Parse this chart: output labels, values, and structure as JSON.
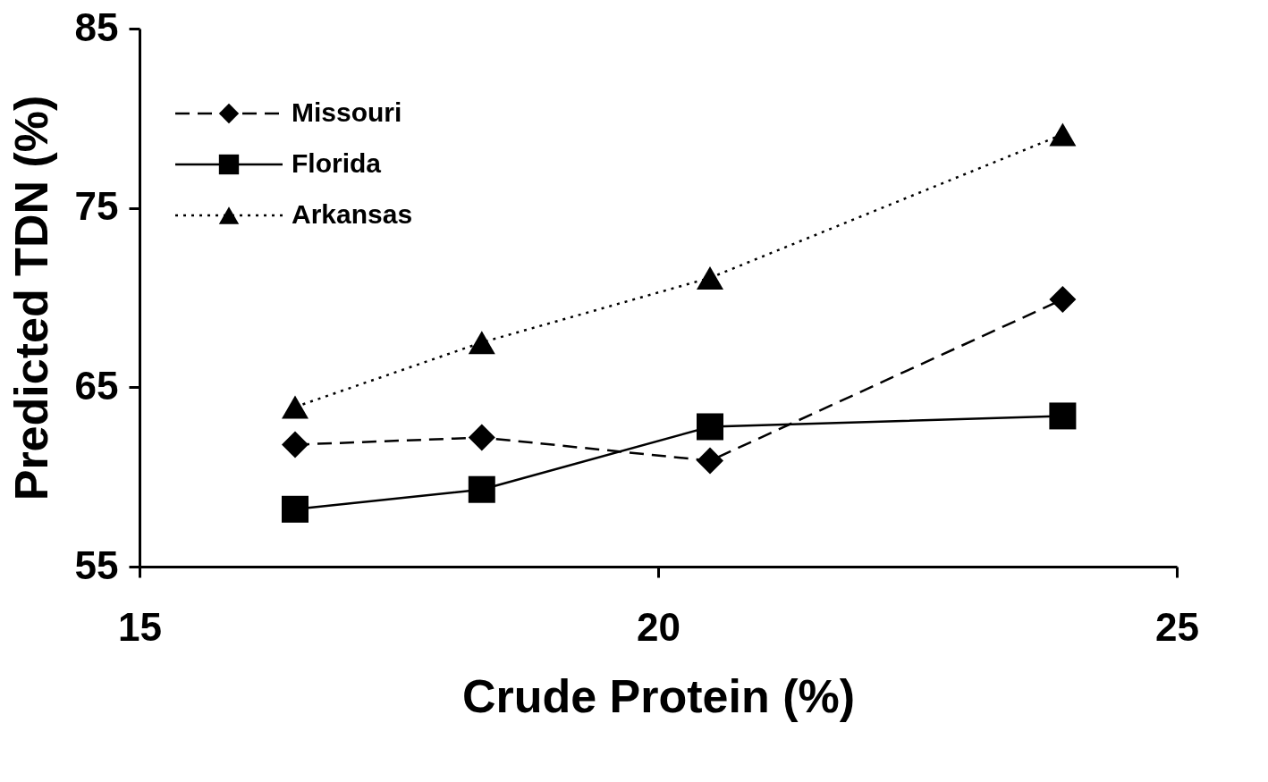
{
  "chart_data": {
    "type": "line",
    "xlabel": "Crude Protein (%)",
    "ylabel": "Predicted TDN (%)",
    "xlim": [
      15,
      25
    ],
    "xticks": [
      15,
      20,
      25
    ],
    "ylim": [
      55,
      85
    ],
    "yticks": [
      55,
      65,
      75,
      85
    ],
    "grid": false,
    "legend": "top left",
    "series": [
      {
        "name": "Missouri",
        "color": "#000000",
        "marker": "diamond",
        "line_style": "dashed",
        "x": [
          16.5,
          18.3,
          20.5,
          23.9
        ],
        "values": [
          61.8,
          62.2,
          60.9,
          69.9
        ]
      },
      {
        "name": "Florida",
        "color": "#000000",
        "marker": "square",
        "line_style": "solid",
        "x": [
          16.5,
          18.3,
          20.5,
          23.9
        ],
        "values": [
          58.2,
          59.3,
          62.8,
          63.4
        ]
      },
      {
        "name": "Arkansas",
        "color": "#000000",
        "marker": "triangle",
        "line_style": "dotted",
        "x": [
          16.5,
          18.3,
          20.5,
          23.9
        ],
        "values": [
          63.9,
          67.5,
          71.1,
          79.1
        ]
      }
    ]
  }
}
